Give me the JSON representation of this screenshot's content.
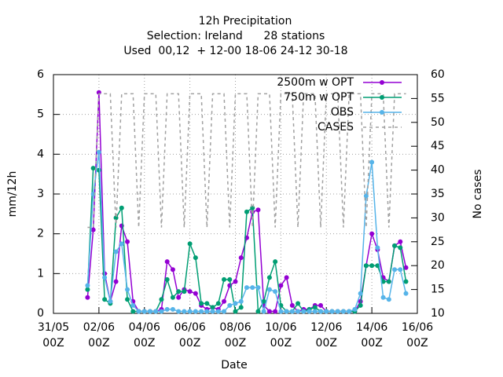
{
  "chart_data": {
    "type": "line",
    "title": "12h Precipitation",
    "subtitle": [
      "Selection: Ireland      28 stations",
      "Used  00,12  + 12-00 18-06 24-12 30-18"
    ],
    "xlabel": "Date",
    "ylabel": "mm/12h",
    "y2label": "No cases",
    "x": [
      "01/06 12Z",
      "01/06 18Z",
      "02/06 00Z",
      "02/06 06Z",
      "02/06 12Z",
      "02/06 18Z",
      "03/06 00Z",
      "03/06 06Z",
      "03/06 12Z",
      "03/06 18Z",
      "04/06 00Z",
      "04/06 06Z",
      "04/06 12Z",
      "04/06 18Z",
      "05/06 00Z",
      "05/06 06Z",
      "05/06 12Z",
      "05/06 18Z",
      "06/06 00Z",
      "06/06 06Z",
      "06/06 12Z",
      "06/06 18Z",
      "07/06 00Z",
      "07/06 06Z",
      "07/06 12Z",
      "07/06 18Z",
      "08/06 00Z",
      "08/06 06Z",
      "08/06 12Z",
      "08/06 18Z",
      "09/06 00Z",
      "09/06 06Z",
      "09/06 12Z",
      "09/06 18Z",
      "10/06 00Z",
      "10/06 06Z",
      "10/06 12Z",
      "10/06 18Z",
      "11/06 00Z",
      "11/06 06Z",
      "11/06 12Z",
      "11/06 18Z",
      "12/06 00Z",
      "12/06 06Z",
      "12/06 12Z",
      "12/06 18Z",
      "13/06 00Z",
      "13/06 06Z",
      "13/06 12Z",
      "13/06 18Z",
      "14/06 00Z",
      "14/06 06Z",
      "14/06 12Z",
      "14/06 18Z",
      "15/06 00Z",
      "15/06 06Z",
      "15/06 12Z"
    ],
    "series": [
      {
        "name": "2500m w OPT",
        "color": "#9400d3",
        "marker": true,
        "values": [
          0.4,
          2.1,
          5.55,
          1.0,
          0.3,
          0.8,
          2.2,
          1.8,
          0.3,
          0.05,
          0.05,
          0.05,
          0.05,
          0.1,
          1.3,
          1.1,
          0.4,
          0.6,
          0.55,
          0.5,
          0.2,
          0.1,
          0.15,
          0.1,
          0.3,
          0.7,
          0.8,
          1.4,
          1.9,
          2.55,
          2.6,
          0.2,
          0.05,
          0.05,
          0.7,
          0.9,
          0.2,
          0.05,
          0.1,
          0.1,
          0.2,
          0.2,
          0.05,
          0.05,
          0.05,
          0.05,
          0.05,
          0.05,
          0.3,
          1.2,
          2.0,
          1.6,
          0.9,
          0.8,
          1.7,
          1.8,
          1.15
        ]
      },
      {
        "name": "750m w OPT",
        "color": "#009e73",
        "marker": true,
        "values": [
          0.6,
          3.65,
          3.6,
          0.35,
          0.25,
          2.4,
          2.65,
          0.35,
          0.05,
          0.05,
          0.05,
          0.05,
          0.05,
          0.35,
          0.85,
          0.4,
          0.55,
          0.55,
          1.75,
          1.4,
          0.25,
          0.25,
          0.15,
          0.25,
          0.85,
          0.85,
          0.05,
          0.15,
          2.55,
          2.65,
          0.05,
          0.3,
          0.9,
          1.3,
          0.2,
          0.05,
          0.05,
          0.25,
          0.05,
          0.1,
          0.15,
          0.05,
          0.05,
          0.05,
          0.05,
          0.05,
          0.05,
          0.05,
          0.2,
          1.2,
          1.2,
          1.2,
          0.8,
          0.8,
          1.7,
          1.65,
          0.8
        ]
      },
      {
        "name": "OBS",
        "color": "#56b4e9",
        "marker": true,
        "values": [
          0.7,
          3.0,
          4.05,
          0.9,
          0.3,
          1.55,
          1.75,
          0.6,
          0.2,
          0.05,
          0.05,
          0.05,
          0.05,
          0.05,
          0.1,
          0.1,
          0.05,
          0.05,
          0.05,
          0.05,
          0.05,
          0.05,
          0.05,
          0.05,
          0.05,
          0.2,
          0.25,
          0.3,
          0.65,
          0.65,
          0.65,
          0.05,
          0.6,
          0.55,
          0.05,
          0.05,
          0.05,
          0.05,
          0.05,
          0.05,
          0.05,
          0.05,
          0.05,
          0.05,
          0.05,
          0.05,
          0.05,
          0.1,
          0.5,
          2.95,
          3.8,
          1.65,
          0.4,
          0.35,
          1.1,
          1.1,
          0.5
        ]
      },
      {
        "name": "CASES",
        "color": "#a0a0a0",
        "marker": false,
        "dashed": true,
        "axis": "y2",
        "values": [
          28,
          28,
          56,
          56,
          56,
          28,
          56,
          56,
          56,
          28,
          56,
          56,
          56,
          28,
          56,
          56,
          56,
          28,
          56,
          56,
          56,
          28,
          56,
          56,
          56,
          28,
          56,
          56,
          56,
          28,
          56,
          56,
          56,
          28,
          56,
          56,
          56,
          28,
          56,
          56,
          56,
          28,
          56,
          56,
          56,
          28,
          56,
          56,
          56,
          28,
          56,
          56,
          56,
          28,
          56,
          56,
          56
        ]
      }
    ],
    "xlim": [
      "31/05 00Z",
      "16/06 00Z"
    ],
    "xticks": [
      {
        "value": "31/05 00Z",
        "label": "31/05\n00Z"
      },
      {
        "value": "02/06 00Z",
        "label": "02/06\n00Z"
      },
      {
        "value": "04/06 00Z",
        "label": "04/06\n00Z"
      },
      {
        "value": "06/06 00Z",
        "label": "06/06\n00Z"
      },
      {
        "value": "08/06 00Z",
        "label": "08/06\n00Z"
      },
      {
        "value": "10/06 00Z",
        "label": "10/06\n00Z"
      },
      {
        "value": "12/06 00Z",
        "label": "12/06\n00Z"
      },
      {
        "value": "14/06 00Z",
        "label": "14/06\n00Z"
      },
      {
        "value": "16/06 00Z",
        "label": "16/06\n00Z"
      }
    ],
    "ylim": [
      0,
      6
    ],
    "yticks": [
      0,
      1,
      2,
      3,
      4,
      5,
      6
    ],
    "y2lim": [
      10,
      60
    ],
    "y2ticks": [
      10,
      15,
      20,
      25,
      30,
      35,
      40,
      45,
      50,
      55,
      60
    ],
    "grid": true,
    "legend": "top-right"
  }
}
